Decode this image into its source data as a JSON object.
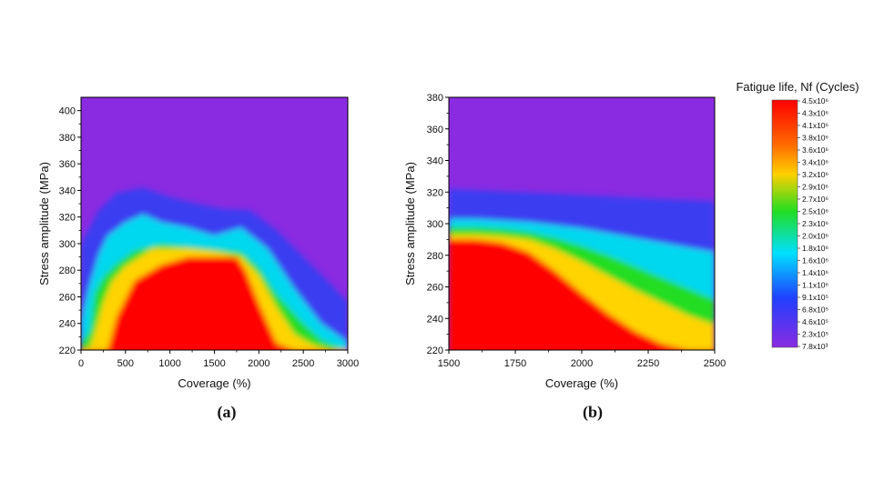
{
  "chart_data": [
    {
      "type": "heatmap",
      "panel_label": "(a)",
      "xlabel": "Coverage (%)",
      "ylabel": "Stress amplitude (MPa)",
      "xlim": [
        0,
        3000
      ],
      "ylim": [
        220,
        410
      ],
      "xticks": [
        0,
        500,
        1000,
        1500,
        2000,
        2500,
        3000
      ],
      "yticks": [
        220,
        240,
        260,
        280,
        300,
        320,
        340,
        360,
        380,
        400
      ],
      "contours": {
        "description_units": "stress amplitude (MPa) boundary at each coverage (%) for selected fatigue-life levels (cycles)",
        "levels": [
          {
            "nf": 4500000.0,
            "x": [
              0,
              100,
              200,
              300,
              400,
              600,
              900,
              1200,
              1500,
              1750,
              1850,
              2000,
              2200,
              2400,
              2600,
              3000
            ],
            "y": [
              220,
              220,
              220,
              220,
              245,
              272,
              284,
              290,
              290,
              290,
              280,
              255,
              225,
              220,
              220,
              220
            ]
          },
          {
            "nf": 2500000.0,
            "x": [
              0,
              100,
              150,
              250,
              350,
              500,
              800,
              1200,
              1500,
              1800,
              2000,
              2200,
              2400,
              2600,
              2800,
              3000
            ],
            "y": [
              220,
              222,
              232,
              256,
              272,
              283,
              296,
              296,
              294,
              290,
              276,
              252,
              232,
              224,
              220,
              220
            ]
          },
          {
            "nf": 1600000.0,
            "x": [
              0,
              100,
              150,
              250,
              400,
              600,
              900,
              1200,
              1500,
              1800,
              2000,
              2200,
              2500,
              2700,
              2900,
              3000
            ],
            "y": [
              225,
              235,
              262,
              275,
              285,
              295,
              300,
              298,
              296,
              294,
              282,
              262,
              240,
              228,
              222,
              220
            ]
          },
          {
            "nf": 910000.0,
            "x": [
              0,
              100,
              200,
              300,
              500,
              700,
              900,
              1200,
              1500,
              1800,
              2100,
              2400,
              2700,
              3000
            ],
            "y": [
              242,
              270,
              292,
              306,
              316,
              322,
              316,
              312,
              306,
              312,
              296,
              266,
              240,
              226
            ]
          },
          {
            "nf": 230000.0,
            "x": [
              0,
              200,
              400,
              700,
              1000,
              1300,
              1600,
              1900,
              2200,
              2500,
              2800,
              3000
            ],
            "y": [
              300,
              325,
              338,
              342,
              335,
              330,
              326,
              325,
              310,
              290,
              270,
              256
            ]
          }
        ]
      }
    },
    {
      "type": "heatmap",
      "panel_label": "(b)",
      "xlabel": "Coverage (%)",
      "ylabel": "Stress amplitude (MPa)",
      "xlim": [
        1500,
        2500
      ],
      "ylim": [
        220,
        380
      ],
      "xticks": [
        1500,
        1750,
        2000,
        2250,
        2500
      ],
      "yticks": [
        220,
        240,
        260,
        280,
        300,
        320,
        340,
        360,
        380
      ],
      "contours": {
        "description_units": "stress amplitude (MPa) boundary at each coverage (%) for selected fatigue-life levels (cycles)",
        "levels": [
          {
            "nf": 4500000.0,
            "x": [
              1500,
              1600,
              1700,
              1800,
              1900,
              2000,
              2100,
              2200,
              2300,
              2400,
              2500
            ],
            "y": [
              290,
              290,
              288,
              282,
              270,
              256,
              243,
              232,
              224,
              220,
              220
            ]
          },
          {
            "nf": 2500000.0,
            "x": [
              1500,
              1600,
              1700,
              1800,
              1900,
              2000,
              2100,
              2200,
              2300,
              2400,
              2500
            ],
            "y": [
              293,
              293,
              292,
              290,
              284,
              276,
              267,
              258,
              250,
              242,
              236
            ]
          },
          {
            "nf": 1600000.0,
            "x": [
              1500,
              1600,
              1700,
              1800,
              1900,
              2000,
              2100,
              2200,
              2300,
              2400,
              2500
            ],
            "y": [
              298,
              298,
              297,
              295,
              291,
              286,
              280,
              273,
              266,
              259,
              252
            ]
          },
          {
            "nf": 910000.0,
            "x": [
              1500,
              1600,
              1700,
              1800,
              1900,
              2000,
              2100,
              2200,
              2300,
              2400,
              2500
            ],
            "y": [
              303,
              303,
              302,
              301,
              299,
              297,
              294,
              291,
              288,
              285,
              282
            ]
          },
          {
            "nf": 230000.0,
            "x": [
              1500,
              1750,
              2000,
              2250,
              2500
            ],
            "y": [
              322,
              320,
              318,
              316,
              314
            ]
          }
        ]
      }
    }
  ],
  "colorbar": {
    "title": "Fatigue life, Nf (Cycles)",
    "range": [
      7800.0,
      4500000.0
    ],
    "labels": [
      "4.5x10⁶",
      "4.3x10⁶",
      "4.1x10⁶",
      "3.8x10⁶",
      "3.6x10⁶",
      "3.4x10⁶",
      "3.2x10⁶",
      "2.9x10⁶",
      "2.7x10⁶",
      "2.5x10⁶",
      "2.3x10⁶",
      "2.0x10⁶",
      "1.8x10⁶",
      "1.6x10⁶",
      "1.4x10⁶",
      "1.1x10⁶",
      "9.1x10⁵",
      "6.8x10⁵",
      "4.6x10⁵",
      "2.3x10⁵",
      "7.8x10³"
    ],
    "colors": {
      "max": "#ff0000",
      "orange": "#ff8c00",
      "yellow": "#ffe000",
      "green": "#22dd22",
      "cyan": "#00e8e8",
      "blue": "#2040ff",
      "min": "#8a2be2"
    }
  }
}
